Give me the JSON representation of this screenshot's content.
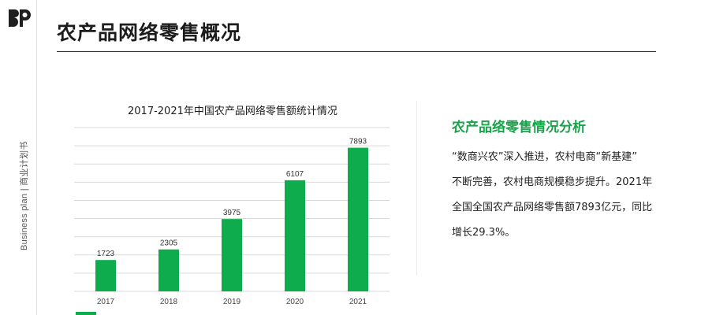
{
  "header": {
    "title": "农产品网络零售概况"
  },
  "sidebar": {
    "label": "Business plan | 商业计划书"
  },
  "analysis": {
    "title": "农产品络零售情况分析",
    "lines": [
      "“数商兴农”深入推进，农村电商“新基建”",
      "不断完善，农村电商规模稳步提升。2021年",
      "全国全国农产品网络零售额7893亿元，同比",
      "增长29.3%。"
    ]
  },
  "colors": {
    "accent": "#19a34a",
    "bar": "#0fac4e",
    "grid": "#d9d9d9"
  },
  "chart_data": {
    "type": "bar",
    "title": "2017-2021年中国农产品网络零售额统计情况",
    "categories": [
      "2017",
      "2018",
      "2019",
      "2020",
      "2021"
    ],
    "values": [
      1723,
      2305,
      3975,
      6107,
      7893
    ],
    "ylim": [
      0,
      9000
    ],
    "grid": true,
    "legend": "bottom-left",
    "xlabel": "",
    "ylabel": ""
  }
}
